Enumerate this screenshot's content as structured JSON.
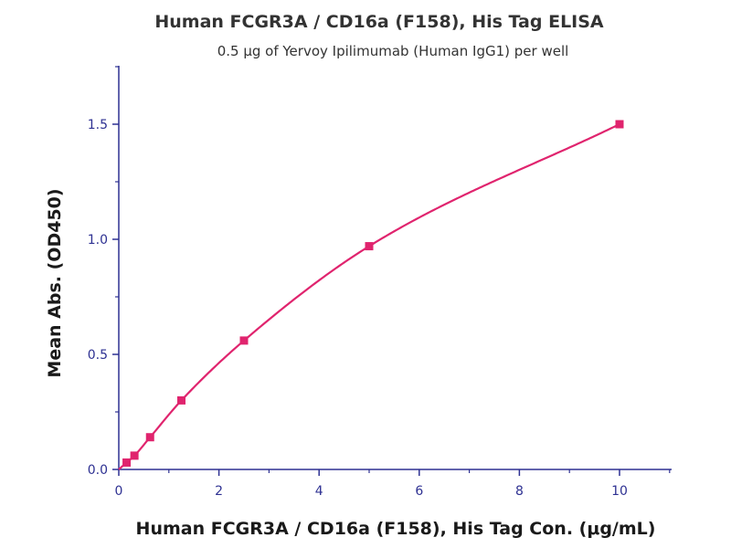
{
  "chart_data": {
    "type": "scatter",
    "title": "Human FCGR3A / CD16a (F158), His Tag ELISA",
    "subtitle": "0.5 μg of Yervoy Ipilimumab (Human IgG1) per well",
    "xlabel": "Human FCGR3A / CD16a (F158), His Tag Con. (μg/mL)",
    "ylabel": "Mean Abs. (OD450)",
    "xlim": [
      0,
      11
    ],
    "ylim": [
      0,
      1.75
    ],
    "x_ticks": [
      0,
      2,
      4,
      6,
      8,
      10
    ],
    "y_ticks": [
      0.0,
      0.5,
      1.0,
      1.5
    ],
    "x_tick_labels": [
      "0",
      "2",
      "4",
      "6",
      "8",
      "10"
    ],
    "y_tick_labels": [
      "0.0",
      "0.5",
      "1.0",
      "1.5"
    ],
    "series": [
      {
        "x": [
          0.156,
          0.3125,
          0.625,
          1.25,
          2.5,
          5,
          10
        ],
        "y": [
          0.03,
          0.06,
          0.14,
          0.3,
          0.56,
          0.97,
          1.5
        ],
        "color": "#e0246e",
        "fit": "smooth curve"
      }
    ],
    "axis_color": "#2e3192",
    "grid": false
  }
}
